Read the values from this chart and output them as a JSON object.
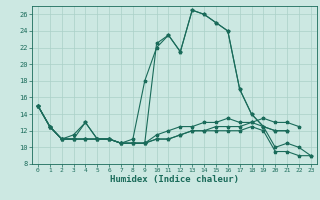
{
  "xlabel": "Humidex (Indice chaleur)",
  "xlim": [
    -0.5,
    23.5
  ],
  "ylim": [
    8,
    27
  ],
  "yticks": [
    8,
    10,
    12,
    14,
    16,
    18,
    20,
    22,
    24,
    26
  ],
  "xticks": [
    0,
    1,
    2,
    3,
    4,
    5,
    6,
    7,
    8,
    9,
    10,
    11,
    12,
    13,
    14,
    15,
    16,
    17,
    18,
    19,
    20,
    21,
    22,
    23
  ],
  "bg_color": "#cce8e2",
  "grid_color": "#aad0c8",
  "line_color": "#1a6b5a",
  "lines": [
    [
      15,
      12.5,
      11,
      11,
      13,
      11,
      11,
      10.5,
      10.5,
      10.5,
      22.5,
      23.5,
      21.5,
      26.5,
      26,
      25,
      24,
      17,
      14,
      12.5,
      12,
      12,
      null,
      null
    ],
    [
      15,
      12.5,
      11,
      11,
      11,
      11,
      11,
      10.5,
      10.5,
      10.5,
      11.5,
      12,
      12.5,
      12.5,
      13,
      13,
      13.5,
      13,
      13,
      13.5,
      13,
      13,
      12.5,
      null
    ],
    [
      15,
      12.5,
      11,
      11,
      11,
      11,
      11,
      10.5,
      10.5,
      10.5,
      11,
      11,
      11.5,
      12,
      12,
      12.5,
      12.5,
      12.5,
      13,
      12.5,
      10,
      10.5,
      10,
      9
    ],
    [
      15,
      12.5,
      11,
      11.5,
      13,
      11,
      11,
      10.5,
      11,
      18,
      22,
      23.5,
      21.5,
      26.5,
      26,
      25,
      24,
      17,
      14,
      12.5,
      12,
      12,
      null,
      null
    ],
    [
      15,
      12.5,
      11,
      11,
      11,
      11,
      11,
      10.5,
      10.5,
      10.5,
      11,
      11,
      11.5,
      12,
      12,
      12,
      12,
      12,
      12.5,
      12,
      9.5,
      9.5,
      9,
      9
    ]
  ]
}
